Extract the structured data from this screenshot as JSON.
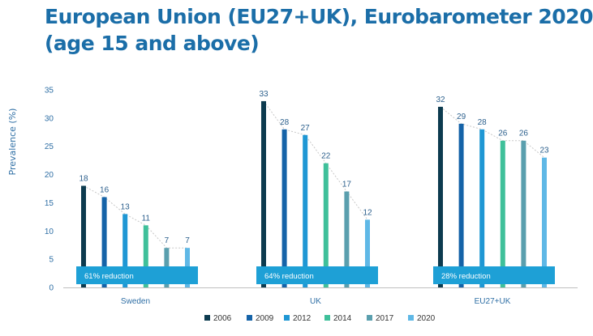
{
  "title": {
    "line1": "European Union (EU27+UK), Eurobarometer 2020",
    "line2": "(age 15 and above)"
  },
  "chart_data": {
    "type": "bar",
    "title": "European Union (EU27+UK), Eurobarometer 2020 (age 15 and above)",
    "xlabel": "",
    "ylabel": "Prevalence (%)",
    "ylim": [
      0,
      35
    ],
    "yticks": [
      0,
      5,
      10,
      15,
      20,
      25,
      30,
      35
    ],
    "grid": false,
    "legend_position": "bottom",
    "categories": [
      "Sweden",
      "UK",
      "EU27+UK"
    ],
    "series": [
      {
        "name": "2006",
        "color": "#0d3b4f",
        "values": [
          18,
          33,
          32
        ]
      },
      {
        "name": "2009",
        "color": "#1563a8",
        "values": [
          16,
          28,
          29
        ]
      },
      {
        "name": "2012",
        "color": "#1f97d4",
        "values": [
          13,
          27,
          28
        ]
      },
      {
        "name": "2014",
        "color": "#3fc09a",
        "values": [
          11,
          22,
          26
        ]
      },
      {
        "name": "2017",
        "color": "#5a9fae",
        "values": [
          7,
          17,
          26
        ]
      },
      {
        "name": "2020",
        "color": "#5fb8e6",
        "values": [
          7,
          12,
          23
        ]
      }
    ],
    "annotations": [
      "61% reduction",
      "64% reduction",
      "28% reduction"
    ],
    "annotation_color": "#1ea0d6",
    "trend_line_color": "#c8c8c8"
  }
}
